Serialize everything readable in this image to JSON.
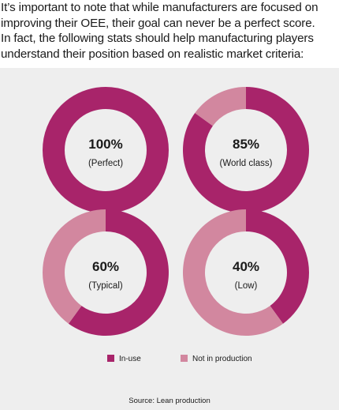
{
  "intro": {
    "lines": [
      "It’s important to note that while manufacturers are focused on",
      "improving their OEE, their goal can never be a perfect score.",
      "In fact, the following stats should help manufacturing players",
      "understand their position based on realistic market criteria:"
    ]
  },
  "colors": {
    "in_use": "#a8246a",
    "not_in_production": "#d2879f",
    "panel_bg": "#eeeeee"
  },
  "chart_data": {
    "type": "pie",
    "legend": [
      "In-use",
      "Not in production"
    ],
    "legend_position": "bottom",
    "charts": [
      {
        "percent_label": "100%",
        "category": "(Perfect)",
        "in_use": 100,
        "not_in_production": 0
      },
      {
        "percent_label": "85%",
        "category": "(World class)",
        "in_use": 85,
        "not_in_production": 15
      },
      {
        "percent_label": "60%",
        "category": "(Typical)",
        "in_use": 60,
        "not_in_production": 40
      },
      {
        "percent_label": "40%",
        "category": "(Low)",
        "in_use": 40,
        "not_in_production": 60
      }
    ],
    "source": "Source: Lean production"
  }
}
